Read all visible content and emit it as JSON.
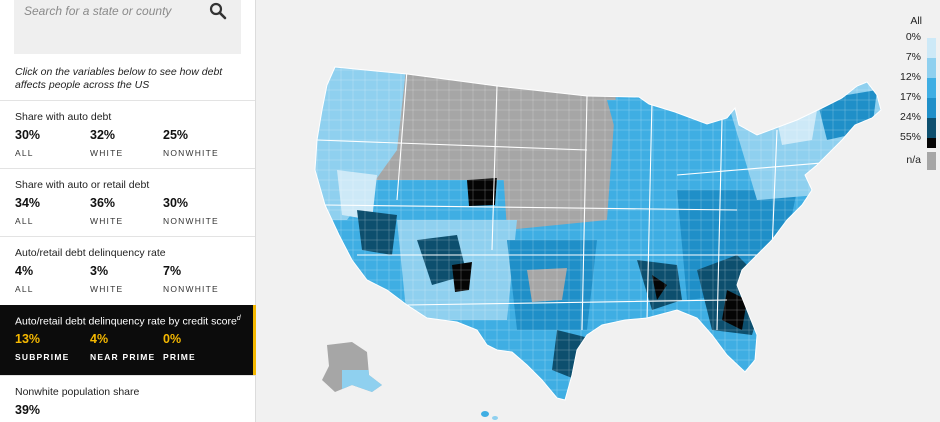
{
  "search": {
    "placeholder": "Search for a state or county"
  },
  "intro_text": "Click on the variables below to see how debt affects people across the US",
  "variables": [
    {
      "title": "Share with auto debt",
      "values": [
        {
          "value": "30%",
          "label": "ALL"
        },
        {
          "value": "32%",
          "label": "WHITE"
        },
        {
          "value": "25%",
          "label": "NONWHITE"
        }
      ]
    },
    {
      "title": "Share with auto or retail debt",
      "values": [
        {
          "value": "34%",
          "label": "ALL"
        },
        {
          "value": "36%",
          "label": "WHITE"
        },
        {
          "value": "30%",
          "label": "NONWHITE"
        }
      ]
    },
    {
      "title": "Auto/retail debt delinquency rate",
      "values": [
        {
          "value": "4%",
          "label": "ALL"
        },
        {
          "value": "3%",
          "label": "WHITE"
        },
        {
          "value": "7%",
          "label": "NONWHITE"
        }
      ]
    },
    {
      "title": "Auto/retail debt delinquency rate by credit score",
      "footnote": "d",
      "active": true,
      "values": [
        {
          "value": "13%",
          "label": "SUBPRIME"
        },
        {
          "value": "4%",
          "label": "NEAR PRIME"
        },
        {
          "value": "0%",
          "label": "PRIME"
        }
      ]
    },
    {
      "title": "Nonwhite population share",
      "values": [
        {
          "value": "39%",
          "label": ""
        }
      ]
    }
  ],
  "legend": {
    "title": "All",
    "stops": [
      "0%",
      "7%",
      "12%",
      "17%",
      "24%",
      "55%"
    ],
    "colors": [
      "#cde9f7",
      "#8fd0ef",
      "#3faee3",
      "#1f8fc8",
      "#0d4f6e",
      "#050505"
    ],
    "na_label": "n/a",
    "na_color": "#a6a6a6"
  }
}
